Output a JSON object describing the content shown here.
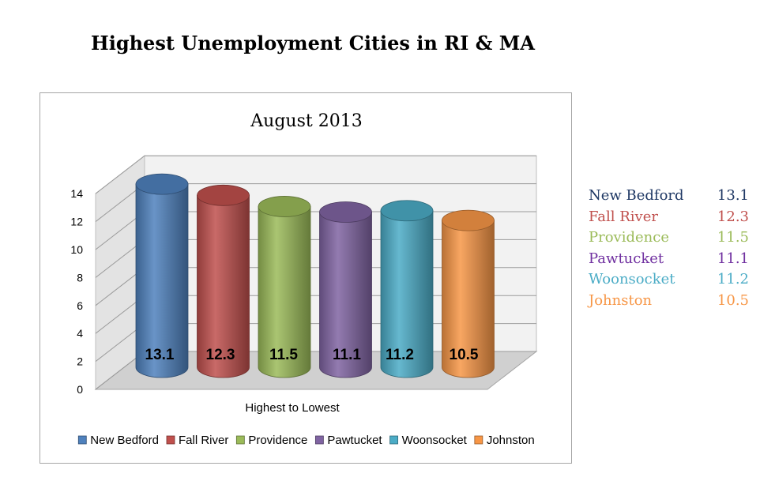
{
  "page_title": "Highest Unemployment Cities in RI & MA",
  "colors": {
    "New Bedford": "#4f81bd",
    "Fall River": "#c0504d",
    "Providence": "#9bbb59",
    "Pawtucket": "#8064a2",
    "Woonsocket": "#4bacc6",
    "Johnston": "#f79646"
  },
  "side_list": [
    {
      "label": "New Bedford",
      "value": "13.1",
      "color": "#1f3864"
    },
    {
      "label": "Fall River",
      "value": "12.3",
      "color": "#c0504d"
    },
    {
      "label": "Providence",
      "value": "11.5",
      "color": "#9bbb59"
    },
    {
      "label": "Pawtucket",
      "value": "11.1",
      "color": "#7030a0"
    },
    {
      "label": "Woonsocket",
      "value": "11.2",
      "color": "#4bacc6"
    },
    {
      "label": "Johnston",
      "value": "10.5",
      "color": "#f79646"
    }
  ],
  "chart_data": {
    "type": "bar",
    "title": "August 2013",
    "xlabel": "Highest to Lowest",
    "ylabel": "",
    "ylim": [
      0,
      14
    ],
    "yticks": [
      "0",
      "2",
      "4",
      "6",
      "8",
      "10",
      "12",
      "14"
    ],
    "grid": true,
    "legend_position": "bottom",
    "series": [
      {
        "name": "New Bedford",
        "values": [
          13.1
        ],
        "label": "13.1"
      },
      {
        "name": "Fall River",
        "values": [
          12.3
        ],
        "label": "12.3"
      },
      {
        "name": "Providence",
        "values": [
          11.5
        ],
        "label": "11.5"
      },
      {
        "name": "Pawtucket",
        "values": [
          11.1
        ],
        "label": "11.1"
      },
      {
        "name": "Woonsocket",
        "values": [
          11.2
        ],
        "label": "11.2"
      },
      {
        "name": "Johnston",
        "values": [
          10.5
        ],
        "label": "10.5"
      }
    ]
  }
}
